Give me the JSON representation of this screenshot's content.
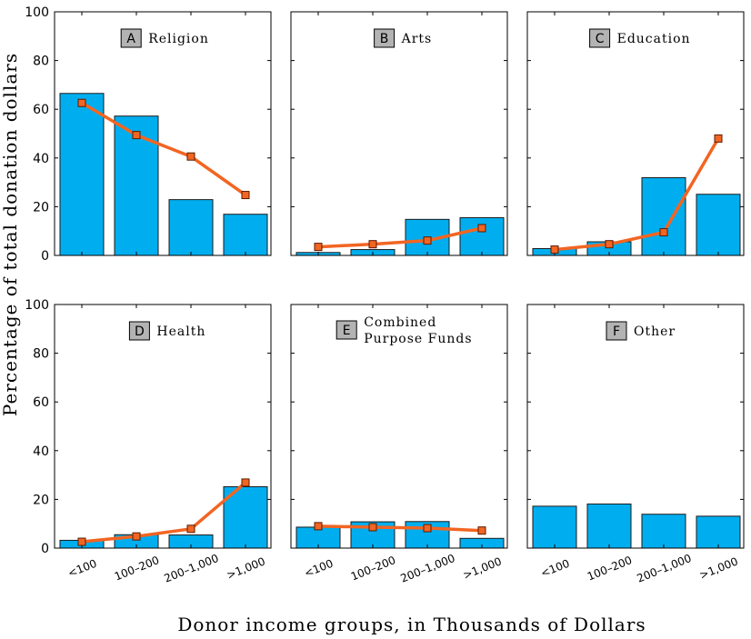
{
  "chart_data": {
    "type": "bar",
    "ylabel": "Percentage of total donation dollars",
    "xlabel": "Donor income groups, in Thousands of Dollars",
    "categories": [
      "<100",
      "100–200",
      "200–1,000",
      ">1,000"
    ],
    "ylim": [
      0,
      100
    ],
    "yticks": [
      0,
      20,
      40,
      60,
      80,
      100
    ],
    "colors": {
      "bar": "#00aeef",
      "bar_edge": "#1a1a1a",
      "line": "#f26522",
      "marker_edge": "#5a1a00",
      "badge": "#b3b3b3"
    },
    "panels": [
      {
        "letter": "A",
        "title": [
          "Religion"
        ],
        "bar_values": [
          66.5,
          57.2,
          22.9,
          16.9
        ],
        "line_values": [
          62.6,
          49.4,
          40.6,
          24.8
        ]
      },
      {
        "letter": "B",
        "title": [
          "Arts"
        ],
        "bar_values": [
          1.2,
          2.4,
          14.8,
          15.5
        ],
        "line_values": [
          3.5,
          4.6,
          6.1,
          11.2
        ]
      },
      {
        "letter": "C",
        "title": [
          "Education"
        ],
        "bar_values": [
          2.8,
          5.6,
          31.9,
          25.1
        ],
        "line_values": [
          2.4,
          4.6,
          9.5,
          48.0
        ]
      },
      {
        "letter": "D",
        "title": [
          "Health"
        ],
        "bar_values": [
          3.2,
          5.5,
          5.4,
          25.2
        ],
        "line_values": [
          2.6,
          4.8,
          7.9,
          26.9
        ]
      },
      {
        "letter": "E",
        "title": [
          "Combined",
          "Purpose Funds"
        ],
        "bar_values": [
          8.6,
          10.8,
          10.9,
          4.0
        ],
        "line_values": [
          9.0,
          8.6,
          8.2,
          7.2
        ]
      },
      {
        "letter": "F",
        "title": [
          "Other"
        ],
        "bar_values": [
          17.2,
          18.1,
          13.9,
          13.1
        ],
        "line_values": []
      }
    ]
  }
}
